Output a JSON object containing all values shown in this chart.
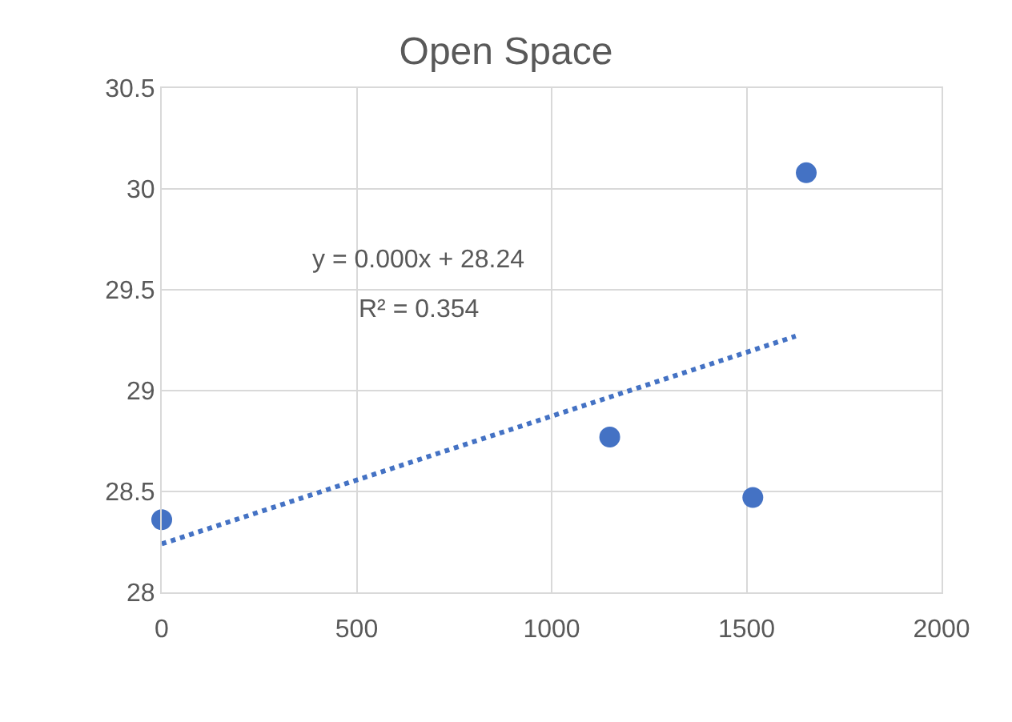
{
  "chart_data": {
    "type": "scatter",
    "title": "Open Space",
    "annotations": [
      "y = 0.000x + 28.24",
      "R² = 0.354"
    ],
    "xlim": [
      0,
      2000
    ],
    "xticks": [
      0,
      500,
      1000,
      1500,
      2000
    ],
    "ylim": [
      28,
      30.5
    ],
    "yticks": [
      28,
      28.5,
      29,
      29.5,
      30,
      30.5
    ],
    "grid": true,
    "legend": false,
    "series": [
      {
        "marker": "circle",
        "color": "#4472c4",
        "x": [
          0,
          1149,
          1516,
          1653
        ],
        "values": [
          28.36,
          28.77,
          28.47,
          30.08
        ]
      },
      {
        "type": "line",
        "marker": "none",
        "line_style": "dotted",
        "color": "#4472c4",
        "x": [
          0,
          1626
        ],
        "values": [
          28.24,
          29.27
        ]
      }
    ]
  }
}
